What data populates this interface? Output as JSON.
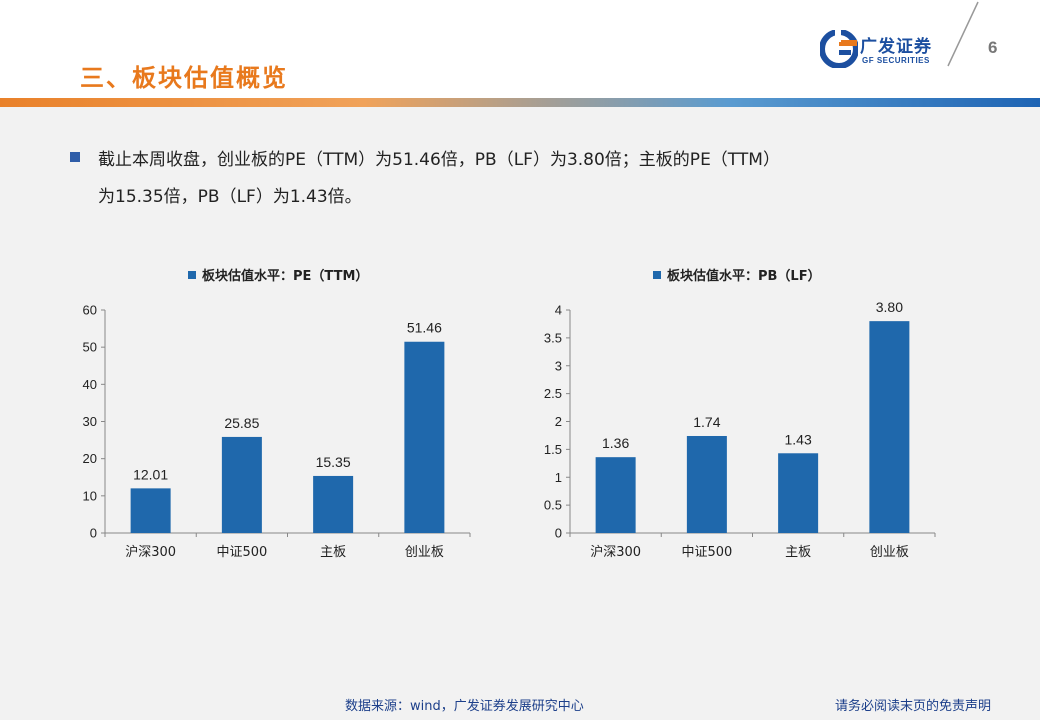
{
  "header": {
    "title": "三、板块估值概览",
    "logo_cn": "广发证券",
    "logo_en": "GF SECURITIES",
    "page_number": "6"
  },
  "summary": {
    "line1": "截止本周收盘，创业板的PE（TTM）为51.46倍，PB（LF）为3.80倍；主板的PE（TTM）",
    "line2": "为15.35倍，PB（LF）为1.43倍。"
  },
  "colors": {
    "accent_orange": "#e8791d",
    "brand_blue": "#1c4fa0",
    "bar_blue": "#1f68ac"
  },
  "chart_data": [
    {
      "type": "bar",
      "legend": "板块估值水平：PE（TTM）",
      "categories": [
        "沪深300",
        "中证500",
        "主板",
        "创业板"
      ],
      "values": [
        12.01,
        25.85,
        15.35,
        51.46
      ],
      "value_labels": [
        "12.01",
        "25.85",
        "15.35",
        "51.46"
      ],
      "ylim": [
        0,
        60
      ],
      "yticks": [
        "0",
        "10",
        "20",
        "30",
        "40",
        "50",
        "60"
      ],
      "ytick_values": [
        0,
        10,
        20,
        30,
        40,
        50,
        60
      ]
    },
    {
      "type": "bar",
      "legend": "板块估值水平：PB（LF）",
      "categories": [
        "沪深300",
        "中证500",
        "主板",
        "创业板"
      ],
      "values": [
        1.36,
        1.74,
        1.43,
        3.8
      ],
      "value_labels": [
        "1.36",
        "1.74",
        "1.43",
        "3.80"
      ],
      "ylim": [
        0,
        4
      ],
      "yticks": [
        "0",
        "0.5",
        "1",
        "1.5",
        "2",
        "2.5",
        "3",
        "3.5",
        "4"
      ],
      "ytick_values": [
        0,
        0.5,
        1,
        1.5,
        2,
        2.5,
        3,
        3.5,
        4
      ]
    }
  ],
  "footer": {
    "source": "数据来源：wind，广发证券发展研究中心",
    "disclaimer": "请务必阅读末页的免责声明"
  }
}
